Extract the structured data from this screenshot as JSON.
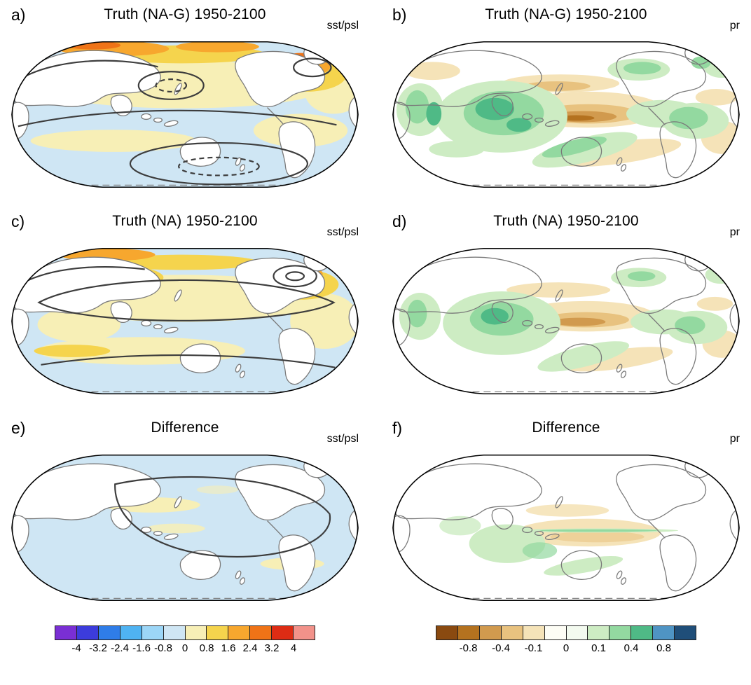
{
  "figure": {
    "panels": [
      {
        "id": "a",
        "label": "a)",
        "title": "Truth (NA-G) 1950-2100",
        "annotation": "sst/psl"
      },
      {
        "id": "b",
        "label": "b)",
        "title": "Truth (NA-G) 1950-2100",
        "annotation": "pr"
      },
      {
        "id": "c",
        "label": "c)",
        "title": "Truth (NA) 1950-2100",
        "annotation": "sst/psl"
      },
      {
        "id": "d",
        "label": "d)",
        "title": "Truth (NA) 1950-2100",
        "annotation": "pr"
      },
      {
        "id": "e",
        "label": "e)",
        "title": "Difference",
        "annotation": "sst/psl"
      },
      {
        "id": "f",
        "label": "f)",
        "title": "Difference",
        "annotation": "pr"
      }
    ],
    "colorbars": [
      {
        "id": "sst",
        "ticks": [
          "-4",
          "-3.2",
          "-2.4",
          "-1.6",
          "-0.8",
          "0",
          "0.8",
          "1.6",
          "2.4",
          "3.2",
          "4"
        ],
        "colors": [
          "#7a2fd4",
          "#3c3cdc",
          "#2f7de8",
          "#4fb3f2",
          "#9cd6f7",
          "#cfe6f4",
          "#f7efb6",
          "#f5d44d",
          "#f7a72e",
          "#ef7317",
          "#dd2c14",
          "#f2928a"
        ]
      },
      {
        "id": "pr",
        "ticks": [
          "-0.8",
          "-0.4",
          "-0.1",
          "0",
          "0.1",
          "0.4",
          "0.8"
        ],
        "colors": [
          "#8a4a10",
          "#b4721f",
          "#d19a4e",
          "#e8c27f",
          "#f5e3b8",
          "#fdfdf5",
          "#f3faef",
          "#cdecc3",
          "#93d9a0",
          "#4fba86",
          "#4f94c4",
          "#1f4e79"
        ]
      }
    ]
  }
}
